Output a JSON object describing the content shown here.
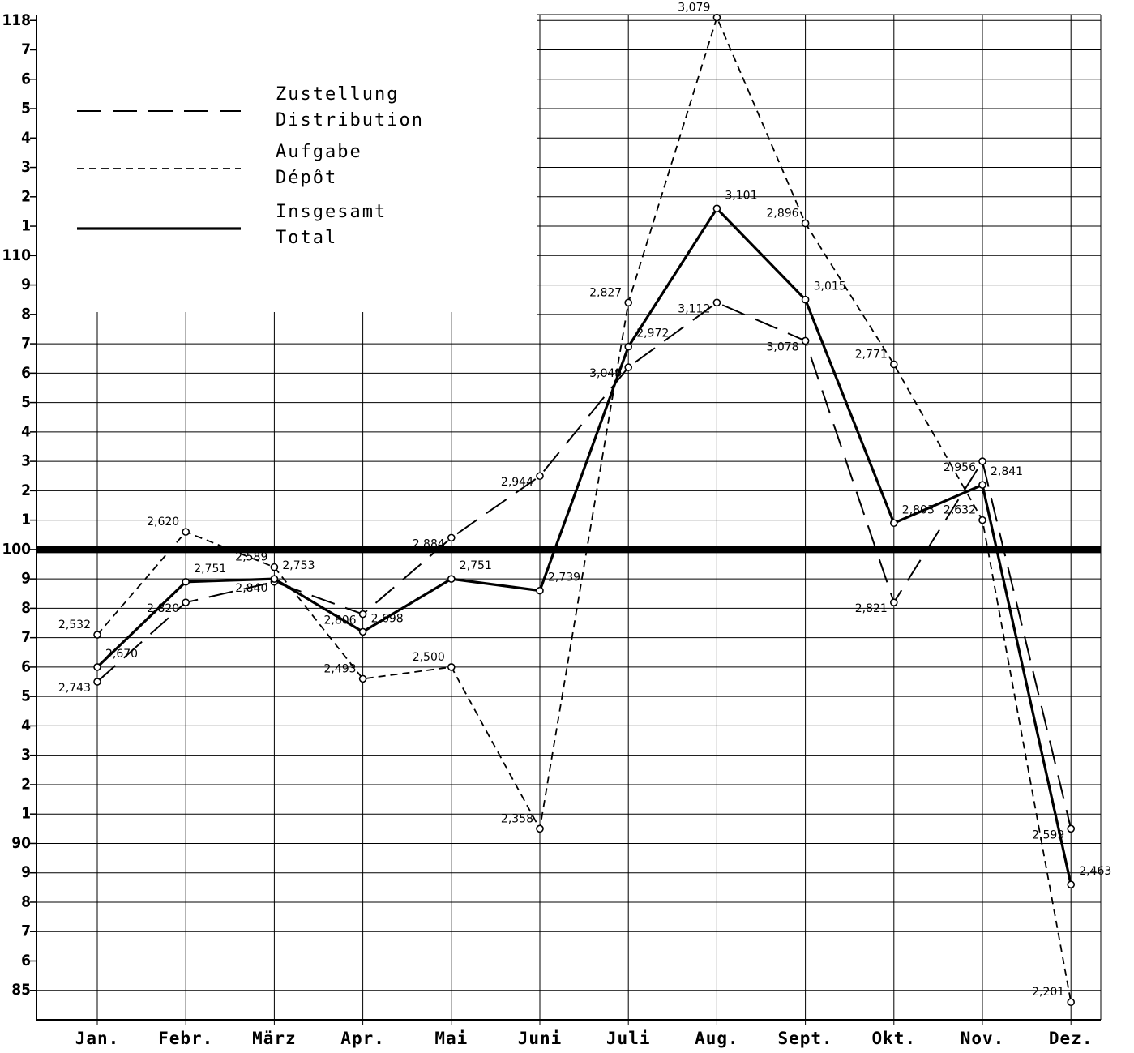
{
  "chart_data": {
    "type": "line",
    "categories": [
      "Jan.",
      "Febr.",
      "März",
      "Apr.",
      "Mai",
      "Juni",
      "Juli",
      "Aug.",
      "Sept.",
      "Okt.",
      "Nov.",
      "Dez."
    ],
    "ylim": [
      84,
      118.2
    ],
    "yticks": [
      85,
      {
        "value": 86,
        "label": "6"
      },
      {
        "value": 87,
        "label": "7"
      },
      {
        "value": 88,
        "label": "8"
      },
      {
        "value": 89,
        "label": "9"
      },
      90,
      {
        "value": 91,
        "label": "1"
      },
      {
        "value": 92,
        "label": "2"
      },
      {
        "value": 93,
        "label": "3"
      },
      {
        "value": 94,
        "label": "4"
      },
      {
        "value": 95,
        "label": "5"
      },
      {
        "value": 96,
        "label": "6"
      },
      {
        "value": 97,
        "label": "7"
      },
      {
        "value": 98,
        "label": "8"
      },
      {
        "value": 99,
        "label": "9"
      },
      100,
      {
        "value": 101,
        "label": "1"
      },
      {
        "value": 102,
        "label": "2"
      },
      {
        "value": 103,
        "label": "3"
      },
      {
        "value": 104,
        "label": "4"
      },
      {
        "value": 105,
        "label": "5"
      },
      {
        "value": 106,
        "label": "6"
      },
      {
        "value": 107,
        "label": "7"
      },
      {
        "value": 108,
        "label": "8"
      },
      {
        "value": 109,
        "label": "9"
      },
      110,
      {
        "value": 111,
        "label": "1"
      },
      {
        "value": 112,
        "label": "2"
      },
      {
        "value": 113,
        "label": "3"
      },
      {
        "value": 114,
        "label": "4"
      },
      {
        "value": 115,
        "label": "5"
      },
      {
        "value": 116,
        "label": "6"
      },
      {
        "value": 117,
        "label": "7"
      },
      118
    ],
    "reference_line": 100,
    "grid": true,
    "series": [
      {
        "name": "Zustellung",
        "subname": "Distribution",
        "color": "#000",
        "style": "long-dash",
        "values": [
          95.5,
          98.2,
          98.9,
          97.8,
          100.4,
          102.5,
          106.2,
          108.4,
          107.1,
          98.2,
          103.0,
          90.5
        ],
        "point_labels": [
          "2,743",
          "2,820",
          "2,840",
          "2,806",
          "2,884",
          "2,944",
          "3,049",
          "3,112",
          "3,078",
          "2,821",
          "2,956",
          "2,599"
        ]
      },
      {
        "name": "Aufgabe",
        "subname": "Dépôt",
        "color": "#000",
        "style": "short-dash",
        "values": [
          97.1,
          100.6,
          99.4,
          95.6,
          96.0,
          90.5,
          108.4,
          118.1,
          111.1,
          106.3,
          101.0,
          84.6
        ],
        "point_labels": [
          "2,532",
          "2,620",
          "2,589",
          "2,493",
          "2,500",
          "2,358",
          "2,827",
          "3,079",
          "2,896",
          "2,771",
          "2,632",
          "2,201"
        ]
      },
      {
        "name": "Insgesamt",
        "subname": "Total",
        "color": "#000",
        "style": "solid",
        "values": [
          96.0,
          98.9,
          99.0,
          97.2,
          99.0,
          98.6,
          106.9,
          111.6,
          108.5,
          100.9,
          102.2,
          88.6
        ],
        "point_labels": [
          "2,670",
          "2,751",
          "2,753",
          "2,698",
          "2,751",
          "2,739",
          "2,972",
          "3,101",
          "3,015",
          "2,803",
          "2,841",
          "2,463"
        ]
      }
    ]
  }
}
